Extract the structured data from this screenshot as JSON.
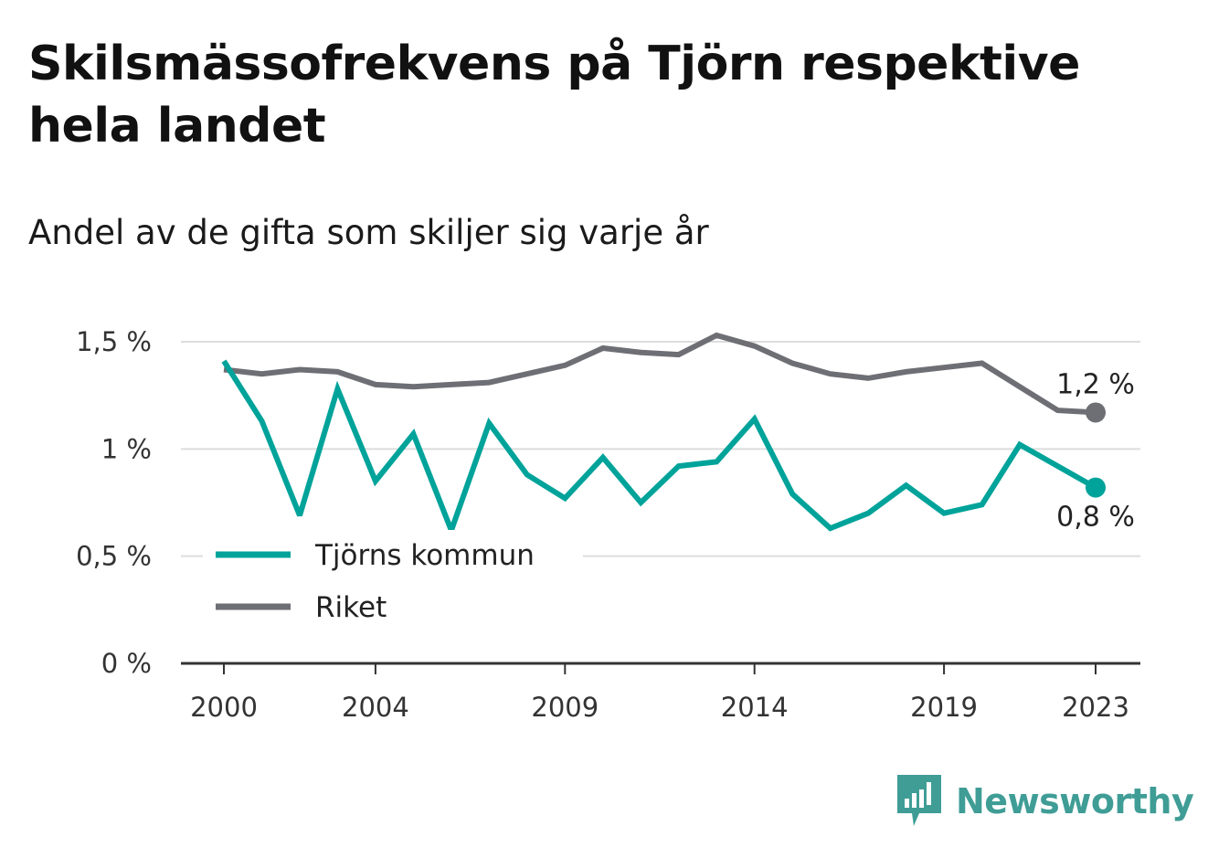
{
  "title": "Skilsmässofrekvens på Tjörn respektive hela landet",
  "subtitle": "Andel av de gifta som skiljer sig varje år",
  "brand": "Newsworthy",
  "colors": {
    "tjorn": "#00a39a",
    "riket": "#6e6e75",
    "grid": "#dddddd",
    "axis": "#333333",
    "brand": "#3f9d96"
  },
  "chart_data": {
    "type": "line",
    "x": [
      2000,
      2001,
      2002,
      2003,
      2004,
      2005,
      2006,
      2007,
      2008,
      2009,
      2010,
      2011,
      2012,
      2013,
      2014,
      2015,
      2016,
      2017,
      2018,
      2019,
      2020,
      2021,
      2022,
      2023
    ],
    "x_ticks": [
      2000,
      2004,
      2009,
      2014,
      2019,
      2023
    ],
    "x_tick_labels": [
      "2000",
      "2004",
      "2009",
      "2014",
      "2019",
      "2023"
    ],
    "ylim": [
      0,
      1.5
    ],
    "y_ticks": [
      0,
      0.5,
      1,
      1.5
    ],
    "y_tick_labels": [
      "0 %",
      "0,5 %",
      "1 %",
      "1,5 %"
    ],
    "grid": true,
    "legend_position": "bottom-left",
    "series": [
      {
        "name": "Tjörns kommun",
        "color": "#00a39a",
        "values": [
          1.41,
          1.13,
          0.69,
          1.28,
          0.85,
          1.07,
          0.62,
          1.12,
          0.88,
          0.77,
          0.96,
          0.75,
          0.92,
          0.94,
          1.14,
          0.79,
          0.63,
          0.7,
          0.83,
          0.7,
          0.74,
          1.02,
          0.92,
          0.82
        ],
        "end_label": "0,8 %"
      },
      {
        "name": "Riket",
        "color": "#6e6e75",
        "values": [
          1.37,
          1.35,
          1.37,
          1.36,
          1.3,
          1.29,
          1.3,
          1.31,
          1.35,
          1.39,
          1.47,
          1.45,
          1.44,
          1.53,
          1.48,
          1.4,
          1.35,
          1.33,
          1.36,
          1.38,
          1.4,
          1.29,
          1.18,
          1.17
        ],
        "end_label": "1,2 %"
      }
    ]
  }
}
